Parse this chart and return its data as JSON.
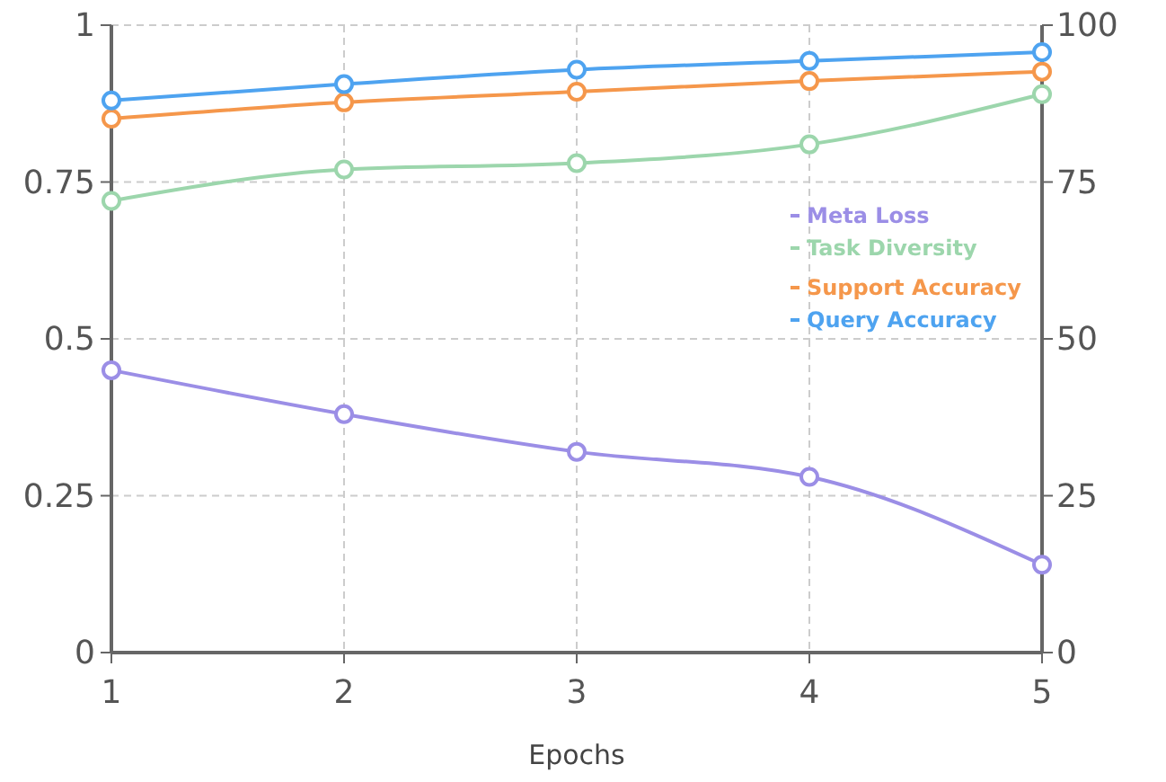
{
  "chart_data": {
    "type": "line",
    "xlabel": "Epochs",
    "x": [
      1,
      2,
      3,
      4,
      5
    ],
    "xlim": [
      1,
      5
    ],
    "xticks": [
      1,
      2,
      3,
      4,
      5
    ],
    "ylim": [
      0,
      1
    ],
    "yticks": [
      0,
      0.25,
      0.5,
      0.75,
      1
    ],
    "y2lim": [
      0,
      100
    ],
    "y2ticks": [
      0,
      25,
      50,
      75,
      100
    ],
    "grid": true,
    "legend": "right",
    "marker": "circle",
    "line_style": "solid",
    "series": [
      {
        "name": "Meta Loss",
        "color": "#9b8ee6",
        "values": [
          0.45,
          0.38,
          0.32,
          0.28,
          0.14
        ]
      },
      {
        "name": "Task Diversity",
        "color": "#9cd6ac",
        "values": [
          0.72,
          0.77,
          0.78,
          0.81,
          0.89
        ]
      },
      {
        "name": "Support Accuracy",
        "color": "#f5974b",
        "axis": "y2",
        "values": [
          85.1,
          87.7,
          89.4,
          91.1,
          92.6
        ]
      },
      {
        "name": "Query Accuracy",
        "color": "#4ea3f0",
        "axis": "y2",
        "values": [
          88,
          90.6,
          92.9,
          94.3,
          95.7
        ]
      }
    ]
  }
}
